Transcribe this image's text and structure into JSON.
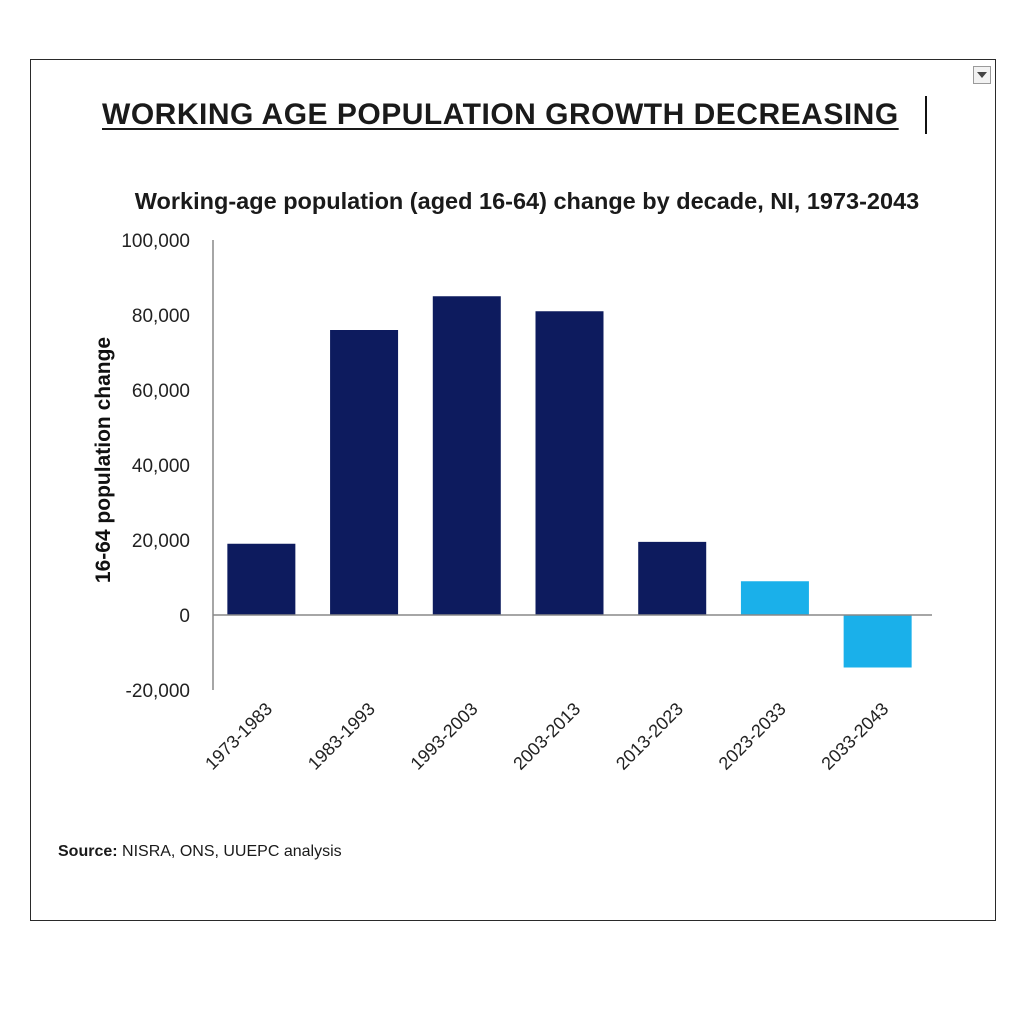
{
  "headline": "WORKING AGE POPULATION GROWTH DECREASING",
  "source": {
    "label": "Source:",
    "text": " NISRA, ONS, UUEPC analysis"
  },
  "dropdown_icon": "chevron-down-icon",
  "chart_data": {
    "type": "bar",
    "title": "Working-age population (aged 16-64) change by decade, NI, 1973-2043",
    "xlabel": "",
    "ylabel": "16-64 population change",
    "categories": [
      "1973-1983",
      "1983-1993",
      "1993-2003",
      "2003-2013",
      "2013-2023",
      "2023-2033",
      "2033-2043"
    ],
    "values": [
      19000,
      76000,
      85000,
      81000,
      19500,
      9000,
      -14000
    ],
    "colors": [
      "#0d1b5e",
      "#0d1b5e",
      "#0d1b5e",
      "#0d1b5e",
      "#0d1b5e",
      "#1ab0ea",
      "#1ab0ea"
    ],
    "ylim": [
      -20000,
      100000
    ],
    "yticks": [
      100000,
      80000,
      60000,
      40000,
      20000,
      0,
      -20000
    ],
    "ytick_labels": [
      "100,000",
      "80,000",
      "60,000",
      "40,000",
      "20,000",
      "0",
      "-20,000"
    ],
    "grid": false,
    "legend": "none"
  }
}
